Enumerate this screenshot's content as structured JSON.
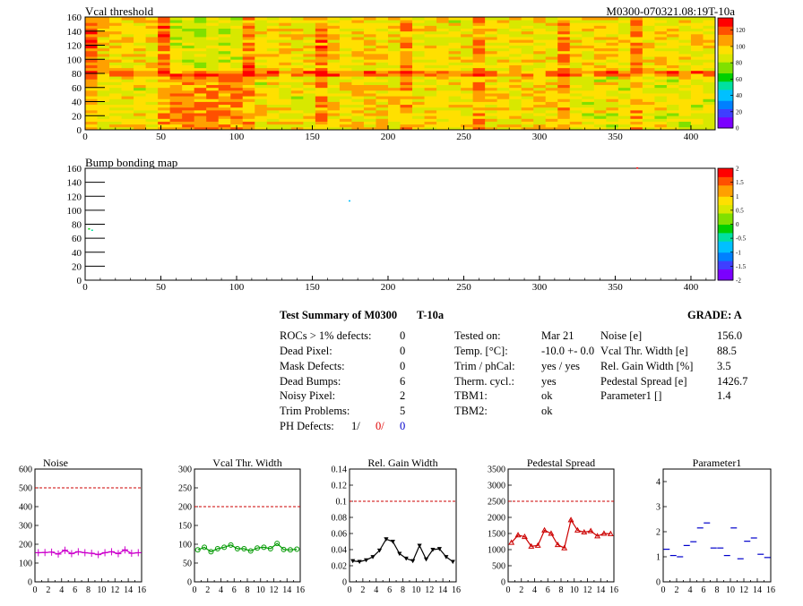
{
  "header": {
    "map_title": "Vcal threshold",
    "module_id": "M0300-070321.08:19T-10a",
    "bump_title": "Bump bonding map"
  },
  "colors": {
    "threshold_palette": [
      "#7b00ff",
      "#3f3fff",
      "#0080ff",
      "#00c0ff",
      "#00e0a0",
      "#00d000",
      "#80e000",
      "#d8e800",
      "#ffe000",
      "#ffa000",
      "#ff5000",
      "#ff0000"
    ],
    "ref_line": "#cc0000",
    "noise": "#cc00cc",
    "vcal": "#009900",
    "gain": "#000000",
    "pedestal": "#cc0000",
    "param": "#0000cc"
  },
  "map_axes": {
    "x_ticks": [
      "0",
      "50",
      "100",
      "150",
      "200",
      "250",
      "300",
      "350",
      "400"
    ],
    "y_ticks": [
      "0",
      "20",
      "40",
      "60",
      "80",
      "100",
      "120",
      "140",
      "160"
    ],
    "thr_scale_ticks": [
      "0",
      "20",
      "40",
      "60",
      "80",
      "100",
      "120"
    ],
    "bump_scale_ticks": [
      "-2",
      "-1.5",
      "-1",
      "-0.5",
      "0",
      "0.5",
      "1",
      "1.5",
      "2"
    ]
  },
  "summary": {
    "title": "Test Summary of M0300",
    "temp_tag": "T-10a",
    "grade_label": "GRADE:  A",
    "defects": [
      {
        "label": "ROCs > 1% defects:",
        "value": "0"
      },
      {
        "label": "Dead Pixel:",
        "value": "0"
      },
      {
        "label": "Mask Defects:",
        "value": "0"
      },
      {
        "label": "Dead Bumps:",
        "value": "6"
      },
      {
        "label": "Noisy Pixel:",
        "value": "2"
      },
      {
        "label": "Trim Problems:",
        "value": "5"
      }
    ],
    "ph_label": "PH Defects:",
    "ph_values": [
      "1/",
      "0/",
      "0"
    ],
    "conditions": [
      {
        "label": "Tested on:",
        "value": "Mar 21"
      },
      {
        "label": "Temp. [°C]:",
        "value": "-10.0 +- 0.0"
      },
      {
        "label": "Trim / phCal:",
        "value": "yes / yes"
      },
      {
        "label": "Therm. cycl.:",
        "value": "yes"
      },
      {
        "label": "TBM1:",
        "value": "ok"
      },
      {
        "label": "TBM2:",
        "value": "ok"
      }
    ],
    "results": [
      {
        "label": "Noise [e]",
        "value": "156.0"
      },
      {
        "label": "Vcal Thr. Width [e]",
        "value": "88.5"
      },
      {
        "label": "Rel. Gain Width [%]",
        "value": "3.5"
      },
      {
        "label": "Pedestal Spread [e]",
        "value": "1426.7"
      },
      {
        "label": "Parameter1 []",
        "value": "1.4"
      }
    ]
  },
  "chart_data": [
    {
      "type": "heatmap",
      "title": "Vcal threshold",
      "xlim": [
        0,
        416
      ],
      "ylim": [
        0,
        160
      ],
      "zlim": [
        0,
        130
      ],
      "x_ticks": [
        0,
        50,
        100,
        150,
        200,
        250,
        300,
        350,
        400
      ],
      "y_ticks": [
        0,
        20,
        40,
        60,
        80,
        100,
        120,
        140,
        160
      ]
    },
    {
      "type": "heatmap",
      "title": "Bump bonding map",
      "xlim": [
        0,
        416
      ],
      "ylim": [
        0,
        160
      ],
      "zlim": [
        -2,
        2
      ],
      "x_ticks": [
        0,
        50,
        100,
        150,
        200,
        250,
        300,
        350,
        400
      ],
      "y_ticks": [
        0,
        20,
        40,
        60,
        80,
        100,
        120,
        140,
        160
      ],
      "points": [
        {
          "x": 174,
          "y": 113
        },
        {
          "x": 2,
          "y": 73
        },
        {
          "x": 4,
          "y": 71
        },
        {
          "x": 364,
          "y": 160
        }
      ]
    },
    {
      "type": "line",
      "title": "Noise",
      "xlim": [
        0,
        16
      ],
      "ylim": [
        0,
        600
      ],
      "y_ticks": [
        0,
        100,
        200,
        300,
        400,
        500,
        600
      ],
      "reference": 500,
      "marker": "plus",
      "values": [
        155,
        156,
        158,
        148,
        168,
        150,
        160,
        155,
        152,
        145,
        155,
        160,
        150,
        170,
        152,
        155
      ]
    },
    {
      "type": "line",
      "title": "Vcal Thr. Width",
      "xlim": [
        0,
        16
      ],
      "ylim": [
        0,
        300
      ],
      "y_ticks": [
        0,
        50,
        100,
        150,
        200,
        250,
        300
      ],
      "reference": 200,
      "marker": "circle",
      "values": [
        85,
        92,
        80,
        88,
        92,
        98,
        88,
        88,
        82,
        90,
        92,
        88,
        102,
        86,
        85,
        87
      ]
    },
    {
      "type": "line",
      "title": "Rel. Gain Width",
      "xlim": [
        0,
        16
      ],
      "ylim": [
        0,
        0.14
      ],
      "y_ticks": [
        0,
        0.02,
        0.04,
        0.06,
        0.08,
        0.1,
        0.12,
        0.14
      ],
      "reference": 0.1,
      "marker": "triangle-down",
      "values": [
        0.026,
        0.025,
        0.027,
        0.031,
        0.039,
        0.053,
        0.05,
        0.035,
        0.029,
        0.026,
        0.045,
        0.028,
        0.04,
        0.041,
        0.031,
        0.025
      ]
    },
    {
      "type": "line",
      "title": "Pedestal Spread",
      "xlim": [
        0,
        16
      ],
      "ylim": [
        0,
        3500
      ],
      "y_ticks": [
        0,
        500,
        1000,
        1500,
        2000,
        2500,
        3000,
        3500
      ],
      "reference": 2500,
      "marker": "triangle-up",
      "values": [
        1220,
        1450,
        1400,
        1100,
        1130,
        1600,
        1500,
        1150,
        1050,
        1920,
        1600,
        1540,
        1580,
        1420,
        1500,
        1490
      ]
    },
    {
      "type": "scatter",
      "title": "Parameter1",
      "xlim": [
        0,
        16
      ],
      "ylim": [
        0,
        4.5
      ],
      "y_ticks": [
        0,
        1,
        2,
        3,
        4
      ],
      "marker": "plus",
      "values": [
        1.3,
        1.05,
        1.0,
        1.45,
        1.6,
        2.15,
        2.35,
        1.35,
        1.35,
        1.05,
        2.15,
        0.92,
        1.62,
        1.75,
        1.1,
        0.97
      ]
    }
  ]
}
